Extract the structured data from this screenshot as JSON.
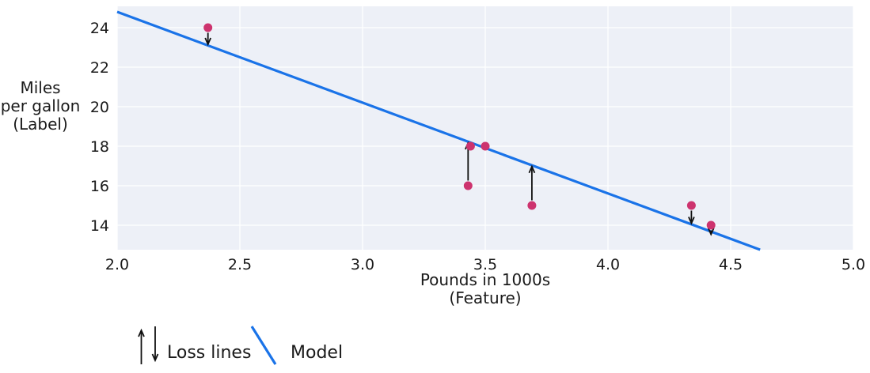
{
  "chart_data": {
    "type": "scatter",
    "title": "",
    "xlabel": "Pounds in 1000s\n(Feature)",
    "ylabel": "Miles\nper gallon\n(Label)",
    "xlim": [
      2.0,
      5.0
    ],
    "ylim": [
      12.76,
      25.08
    ],
    "grid": true,
    "x_ticks": [
      2.0,
      2.5,
      3.0,
      3.5,
      4.0,
      4.5,
      5.0
    ],
    "x_tick_labels": [
      "2.0",
      "2.5",
      "3.0",
      "3.5",
      "4.0",
      "4.5",
      "5.0"
    ],
    "y_ticks": [
      14,
      16,
      18,
      20,
      22,
      24
    ],
    "y_tick_labels": [
      "14",
      "16",
      "18",
      "20",
      "22",
      "24"
    ],
    "points": [
      {
        "x": 2.37,
        "y": 24
      },
      {
        "x": 3.43,
        "y": 16
      },
      {
        "x": 3.44,
        "y": 18
      },
      {
        "x": 3.5,
        "y": 18
      },
      {
        "x": 3.69,
        "y": 15
      },
      {
        "x": 4.34,
        "y": 15
      },
      {
        "x": 4.42,
        "y": 14
      }
    ],
    "model_line": {
      "x1": 2.0,
      "y1": 24.8,
      "x2": 4.62,
      "y2": 12.76
    },
    "loss_arrows": [
      {
        "x": 2.37,
        "from": 24,
        "to": 23.1,
        "dir": "down"
      },
      {
        "x": 3.43,
        "from": 16,
        "to": 18.22,
        "dir": "up"
      },
      {
        "x": 3.69,
        "from": 15,
        "to": 17.03,
        "dir": "up"
      },
      {
        "x": 4.34,
        "from": 15,
        "to": 14.04,
        "dir": "down"
      },
      {
        "x": 4.42,
        "from": 14,
        "to": 13.67,
        "dir": "down"
      }
    ],
    "colors": {
      "model_line": "#1a73e8",
      "point": "#cd336e",
      "arrow": "#111111",
      "plot_bg": "#edf0f7",
      "grid": "#ffffff",
      "text": "#1a1a1a"
    },
    "legend_position": "bottom-left"
  },
  "legend": {
    "loss_label": "Loss lines",
    "model_label": "Model"
  }
}
